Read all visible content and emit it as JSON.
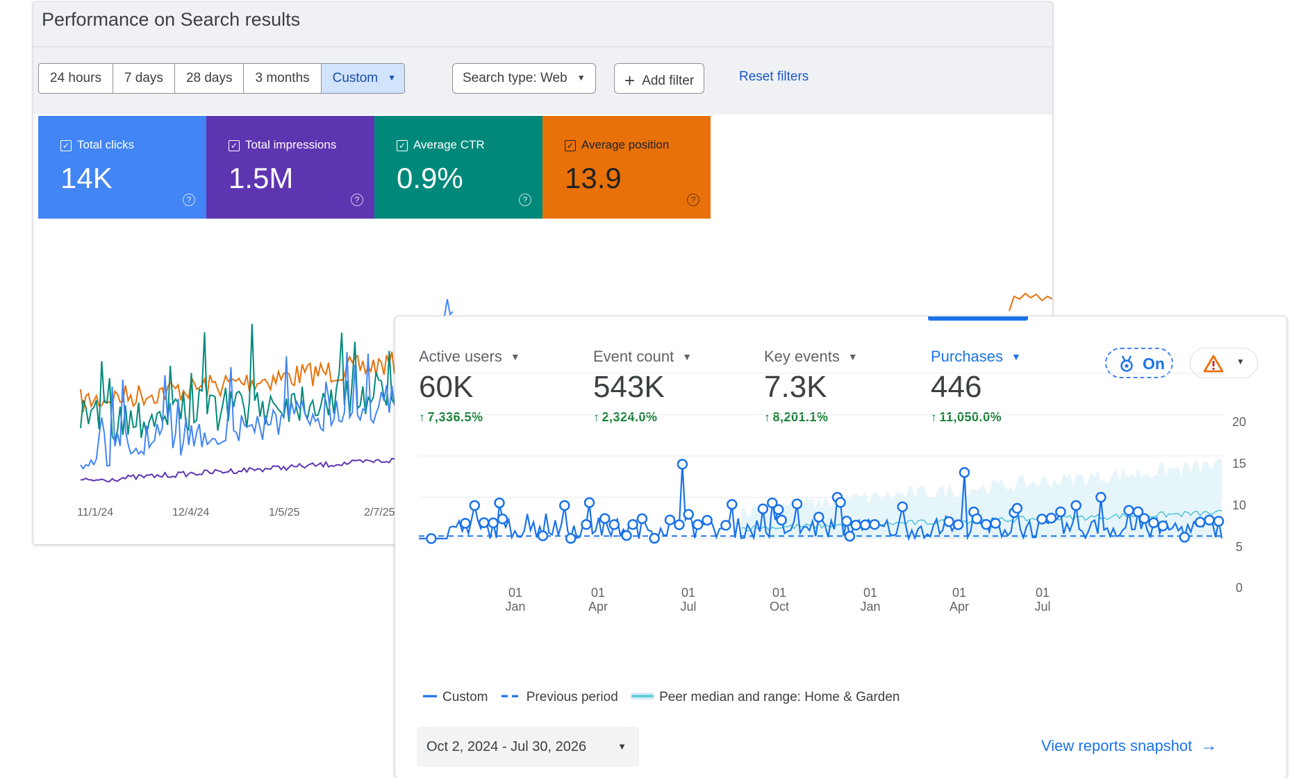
{
  "search_console": {
    "title": "Performance on Search results",
    "date_ranges": [
      "24 hours",
      "7 days",
      "28 days",
      "3 months",
      "Custom"
    ],
    "active_range": "Custom",
    "search_type_label": "Search type: Web",
    "add_filter_label": "Add filter",
    "reset_filters_label": "Reset filters",
    "metrics": [
      {
        "label": "Total clicks",
        "value": "14K",
        "color": "#4285f4"
      },
      {
        "label": "Total impressions",
        "value": "1.5M",
        "color": "#5e35b1"
      },
      {
        "label": "Average CTR",
        "value": "0.9%",
        "color": "#00897b"
      },
      {
        "label": "Average position",
        "value": "13.9",
        "color": "#e8710a"
      }
    ],
    "x_ticks": [
      "11/1/24",
      "12/4/24",
      "1/5/25",
      "2/7/25"
    ],
    "chart_colors": {
      "clicks": "#4285f4",
      "impressions": "#5e35b1",
      "ctr": "#00897b",
      "position": "#e8710a"
    }
  },
  "analytics": {
    "metrics": [
      {
        "label": "Active users",
        "value": "60K",
        "delta": "7,336.5%",
        "selected": false
      },
      {
        "label": "Event count",
        "value": "543K",
        "delta": "2,324.0%",
        "selected": false
      },
      {
        "label": "Key events",
        "value": "7.3K",
        "delta": "8,201.1%",
        "selected": false
      },
      {
        "label": "Purchases",
        "value": "446",
        "delta": "11,050.0%",
        "selected": true
      }
    ],
    "benchmark_toggle_label": "On",
    "y_ticks": [
      "20",
      "15",
      "10",
      "5",
      "0"
    ],
    "x_ticks": [
      {
        "day": "01",
        "month": "Jan"
      },
      {
        "day": "01",
        "month": "Apr"
      },
      {
        "day": "01",
        "month": "Jul"
      },
      {
        "day": "01",
        "month": "Oct"
      },
      {
        "day": "01",
        "month": "Jan"
      },
      {
        "day": "01",
        "month": "Apr"
      },
      {
        "day": "01",
        "month": "Jul"
      }
    ],
    "legend": [
      "Custom",
      "Previous period",
      "Peer median and range: Home & Garden"
    ],
    "date_range_label": "Oct 2, 2024 - Jul 30, 2026",
    "view_snapshot_label": "View reports snapshot",
    "icons": [
      "medal-icon",
      "warning-icon",
      "chevron-down-icon",
      "arrow-right-icon"
    ],
    "colors": {
      "accent": "#1a73e8",
      "positive": "#188038",
      "peer": "#4fc3d9"
    }
  }
}
